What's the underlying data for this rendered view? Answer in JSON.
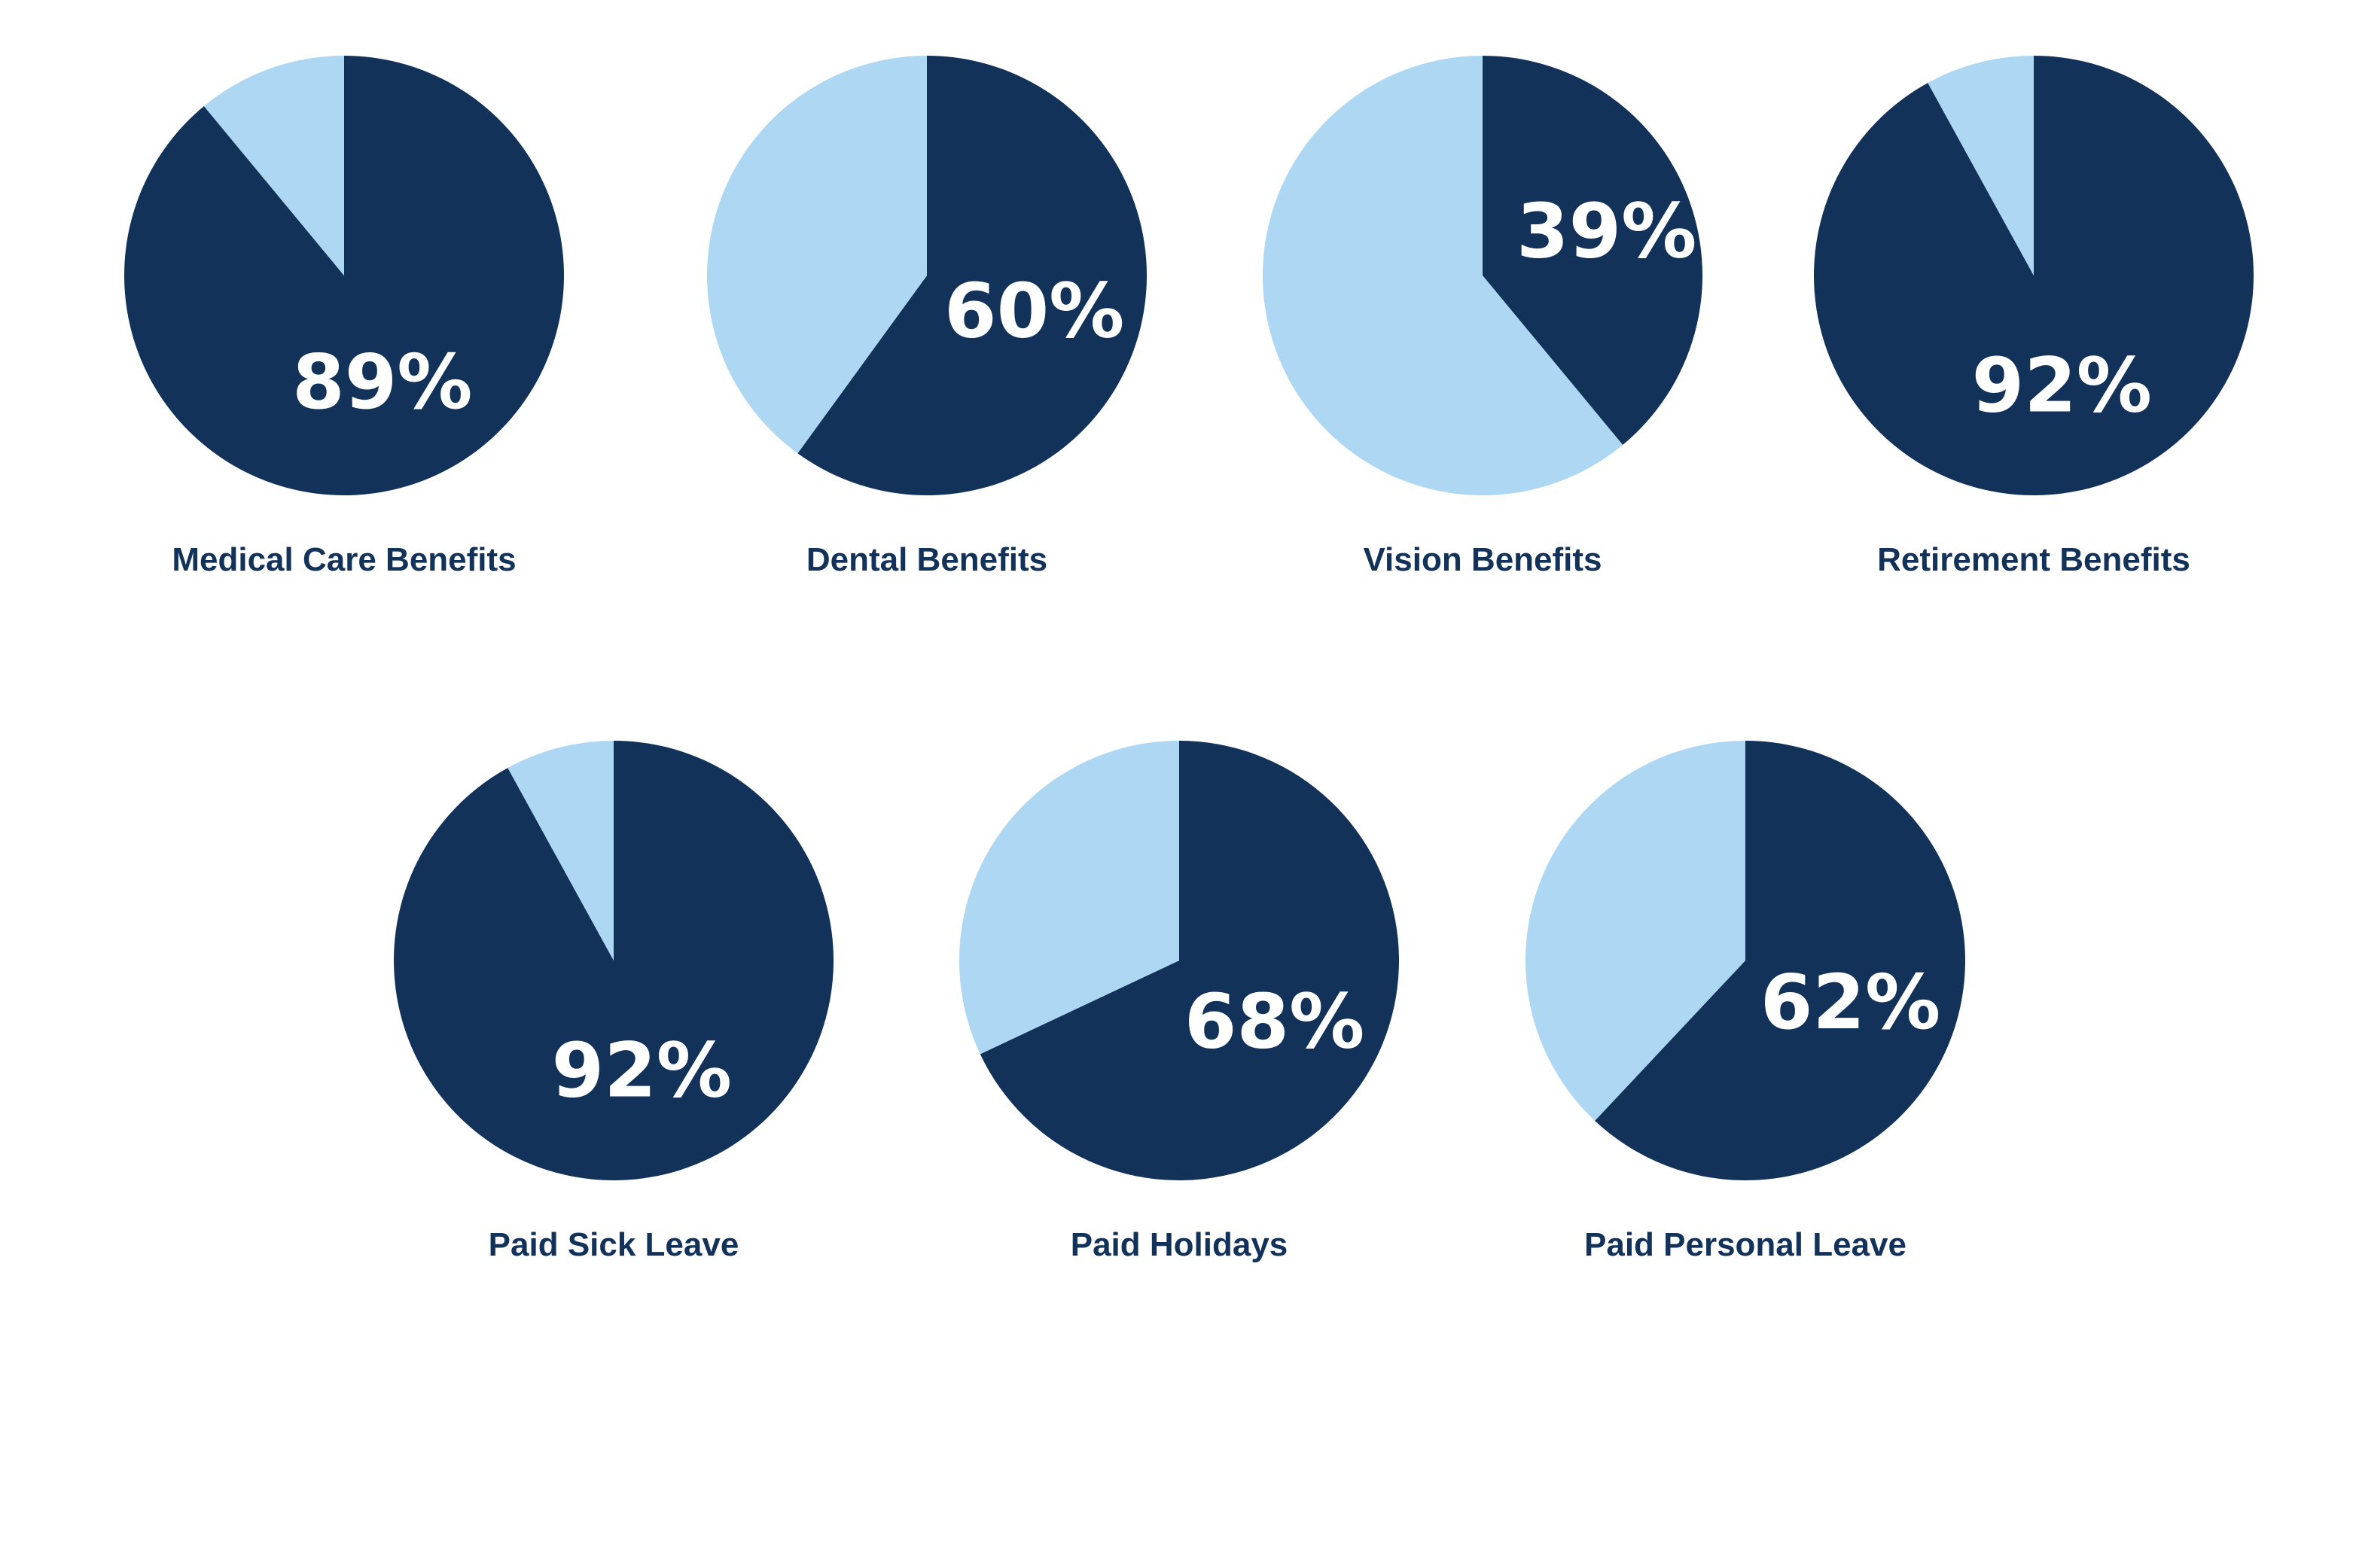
{
  "colors": {
    "primary": "#13325A",
    "secondary": "#ADD7F2",
    "label": "#13325A",
    "background": "#FFFFFF"
  },
  "chart_data": [
    {
      "type": "pie",
      "title": "Medical Care Benefits",
      "value_label": "89%",
      "values": [
        89,
        11
      ]
    },
    {
      "type": "pie",
      "title": "Dental Benefits",
      "value_label": "60%",
      "values": [
        60,
        40
      ]
    },
    {
      "type": "pie",
      "title": "Vision Benefits",
      "value_label": "39%",
      "values": [
        39,
        61
      ]
    },
    {
      "type": "pie",
      "title": "Retirement Benefits",
      "value_label": "92%",
      "values": [
        92,
        8
      ]
    },
    {
      "type": "pie",
      "title": "Paid Sick Leave",
      "value_label": "92%",
      "values": [
        92,
        8
      ]
    },
    {
      "type": "pie",
      "title": "Paid Holidays",
      "value_label": "68%",
      "values": [
        68,
        32
      ]
    },
    {
      "type": "pie",
      "title": "Paid Personal Leave",
      "value_label": "62%",
      "values": [
        62,
        38
      ]
    }
  ]
}
